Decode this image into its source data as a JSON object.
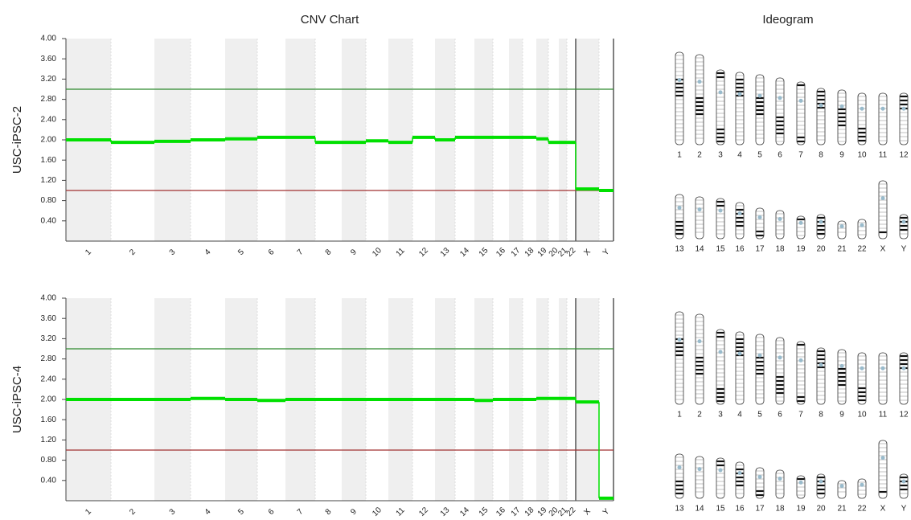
{
  "titles": {
    "cnv": "CNV Chart",
    "ideogram": "Ideogram"
  },
  "chart_data": [
    {
      "type": "line",
      "ylabel": "USC-iPSC-2",
      "categories": [
        "1",
        "2",
        "3",
        "4",
        "5",
        "6",
        "7",
        "8",
        "9",
        "10",
        "11",
        "12",
        "13",
        "14",
        "15",
        "16",
        "17",
        "18",
        "19",
        "20",
        "21",
        "22",
        "X",
        "Y"
      ],
      "values": [
        2.0,
        1.95,
        1.97,
        2.0,
        2.02,
        2.05,
        2.05,
        1.95,
        1.95,
        1.98,
        1.95,
        2.05,
        2.0,
        2.05,
        2.05,
        2.05,
        2.05,
        2.05,
        2.02,
        1.95,
        1.95,
        1.95,
        1.03,
        1.0
      ],
      "color": "#00e000",
      "reference_lines": [
        {
          "value": 3,
          "color": "#2e8b2e"
        },
        {
          "value": 1,
          "color": "#a03030"
        }
      ],
      "ylim": [
        0,
        4
      ],
      "yticks": [
        {
          "value": 0.4,
          "label": "0.40"
        },
        {
          "value": 0.8,
          "label": "0.80"
        },
        {
          "value": 1.2,
          "label": "1.20"
        },
        {
          "value": 1.6,
          "label": "1.60"
        },
        {
          "value": 2,
          "label": "2.00"
        },
        {
          "value": 2.4,
          "label": "2.40"
        },
        {
          "value": 2.8,
          "label": "2.80"
        },
        {
          "value": 3.2,
          "label": "3.20"
        },
        {
          "value": 3.6,
          "label": "3.60"
        },
        {
          "value": 4,
          "label": "4.00"
        }
      ]
    },
    {
      "type": "line",
      "ylabel": "USC-iPSC-4",
      "categories": [
        "1",
        "2",
        "3",
        "4",
        "5",
        "6",
        "7",
        "8",
        "9",
        "10",
        "11",
        "12",
        "13",
        "14",
        "15",
        "16",
        "17",
        "18",
        "19",
        "20",
        "21",
        "22",
        "X",
        "Y"
      ],
      "values": [
        2.0,
        2.0,
        2.0,
        2.02,
        2.0,
        1.98,
        2.0,
        2.0,
        2.0,
        2.0,
        2.0,
        2.0,
        2.0,
        2.0,
        1.98,
        2.0,
        2.0,
        2.0,
        2.02,
        2.02,
        2.02,
        2.02,
        1.95,
        0.05
      ],
      "color": "#00e000",
      "reference_lines": [
        {
          "value": 3,
          "color": "#2e8b2e"
        },
        {
          "value": 1,
          "color": "#a03030"
        }
      ],
      "ylim": [
        0,
        4
      ],
      "yticks": [
        {
          "value": 0.4,
          "label": "0.40"
        },
        {
          "value": 0.8,
          "label": "0.80"
        },
        {
          "value": 1.2,
          "label": "1.20"
        },
        {
          "value": 1.6,
          "label": "1.60"
        },
        {
          "value": 2,
          "label": "2.00"
        },
        {
          "value": 2.4,
          "label": "2.40"
        },
        {
          "value": 2.8,
          "label": "2.80"
        },
        {
          "value": 3.2,
          "label": "3.20"
        },
        {
          "value": 3.6,
          "label": "3.60"
        },
        {
          "value": 4,
          "label": "4.00"
        }
      ]
    }
  ],
  "ideograms": [
    {
      "rows": [
        [
          "1",
          "2",
          "3",
          "4",
          "5",
          "6",
          "7",
          "8",
          "9",
          "10",
          "11",
          "12"
        ],
        [
          "13",
          "14",
          "15",
          "16",
          "17",
          "18",
          "19",
          "20",
          "21",
          "22",
          "X",
          "Y"
        ]
      ]
    },
    {
      "rows": [
        [
          "1",
          "2",
          "3",
          "4",
          "5",
          "6",
          "7",
          "8",
          "9",
          "10",
          "11",
          "12"
        ],
        [
          "13",
          "14",
          "15",
          "16",
          "17",
          "18",
          "19",
          "20",
          "21",
          "22",
          "X",
          "Y"
        ]
      ]
    }
  ]
}
